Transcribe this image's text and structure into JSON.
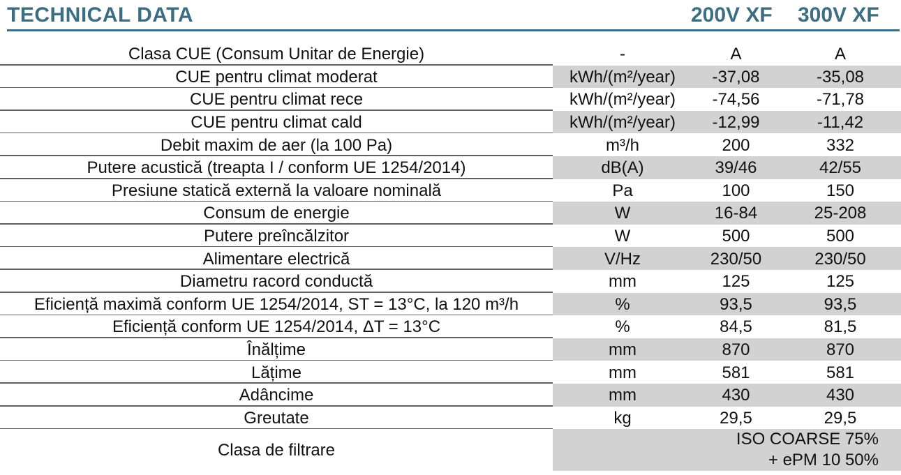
{
  "header": {
    "title": "TECHNICAL DATA",
    "models": [
      "200V XF",
      "300V XF"
    ]
  },
  "rows": [
    {
      "label": "Clasa CUE (Consum Unitar de Energie)",
      "unit": "-",
      "v1": "A",
      "v2": "A"
    },
    {
      "label": "CUE pentru climat moderat",
      "unit": "kWh/(m²/year)",
      "v1": "-37,08",
      "v2": "-35,08"
    },
    {
      "label": "CUE pentru climat rece",
      "unit": "kWh/(m²/year)",
      "v1": "-74,56",
      "v2": "-71,78"
    },
    {
      "label": "CUE pentru climat cald",
      "unit": "kWh/(m²/year)",
      "v1": "-12,99",
      "v2": "-11,42"
    },
    {
      "label": "Debit maxim de aer (la 100 Pa)",
      "unit": "m³/h",
      "v1": "200",
      "v2": "332"
    },
    {
      "label": "Putere acustică (treapta I / conform UE 1254/2014)",
      "unit": "dB(A)",
      "v1": "39/46",
      "v2": "42/55"
    },
    {
      "label": "Presiune statică externă la valoare nominală",
      "unit": "Pa",
      "v1": "100",
      "v2": "150"
    },
    {
      "label": "Consum de energie",
      "unit": "W",
      "v1": "16-84",
      "v2": "25-208"
    },
    {
      "label": "Putere preîncălzitor",
      "unit": "W",
      "v1": "500",
      "v2": "500"
    },
    {
      "label": "Alimentare electrică",
      "unit": "V/Hz",
      "v1": "230/50",
      "v2": "230/50"
    },
    {
      "label": "Diametru racord conductă",
      "unit": "mm",
      "v1": "125",
      "v2": "125"
    },
    {
      "label": "Eficiență maximă conform UE 1254/2014, ST = 13°C, la 120 m³/h",
      "unit": "%",
      "v1": "93,5",
      "v2": "93,5"
    },
    {
      "label": "Eficiență conform UE 1254/2014, ΔT = 13°C",
      "unit": "%",
      "v1": "84,5",
      "v2": "81,5"
    },
    {
      "label": "Înălțime",
      "unit": "mm",
      "v1": "870",
      "v2": "870"
    },
    {
      "label": "Lățime",
      "unit": "mm",
      "v1": "581",
      "v2": "581"
    },
    {
      "label": "Adâncime",
      "unit": "mm",
      "v1": "430",
      "v2": "430"
    },
    {
      "label": "Greutate",
      "unit": "kg",
      "v1": "29,5",
      "v2": "29,5"
    }
  ],
  "last_row": {
    "label": "Clasa de filtrare",
    "value_line1": "ISO COARSE 75%",
    "value_line2": "+ ePM 10 50%"
  }
}
